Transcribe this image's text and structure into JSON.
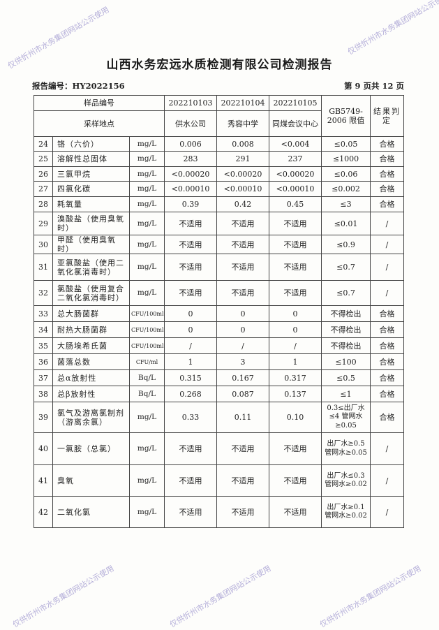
{
  "watermark": "仅供忻州市水务集团网站公示使用",
  "title": "山西水务宏远水质检测有限公司检测报告",
  "report_no": "报告编号：HY2022156",
  "page_info": "第 9 页共 12 页",
  "header": {
    "sample_no_label": "样品编号",
    "site_label": "采样地点",
    "samples": [
      "202210103",
      "202210104",
      "202210105"
    ],
    "sites": [
      "供水公司",
      "秀容中学",
      "同煤会议中心"
    ],
    "limit_label": "GB5749-2006 限值",
    "result_label": "结果判定"
  },
  "rows": [
    {
      "no": "24",
      "item": "铬（六价）",
      "unit": "mg/L",
      "v": [
        "0.006",
        "0.008",
        "<0.004"
      ],
      "limit": "≤0.05",
      "result": "合格"
    },
    {
      "no": "25",
      "item": "溶解性总固体",
      "unit": "mg/L",
      "v": [
        "283",
        "291",
        "237"
      ],
      "limit": "≤1000",
      "result": "合格"
    },
    {
      "no": "26",
      "item": "三氯甲烷",
      "unit": "mg/L",
      "v": [
        "<0.00020",
        "<0.00020",
        "<0.00020"
      ],
      "limit": "≤0.06",
      "result": "合格"
    },
    {
      "no": "27",
      "item": "四氯化碳",
      "unit": "mg/L",
      "v": [
        "<0.00010",
        "<0.00010",
        "<0.00010"
      ],
      "limit": "≤0.002",
      "result": "合格"
    },
    {
      "no": "28",
      "item": "耗氧量",
      "unit": "mg/L",
      "v": [
        "0.39",
        "0.42",
        "0.45"
      ],
      "limit": "≤3",
      "result": "合格"
    },
    {
      "no": "29",
      "item": "溴酸盐（使用臭氧时）",
      "unit": "mg/L",
      "v": [
        "不适用",
        "不适用",
        "不适用"
      ],
      "limit": "≤0.01",
      "result": "/"
    },
    {
      "no": "30",
      "item": "甲醛（使用臭氧时）",
      "unit": "mg/L",
      "v": [
        "不适用",
        "不适用",
        "不适用"
      ],
      "limit": "≤0.9",
      "result": "/"
    },
    {
      "no": "31",
      "item": "亚氯酸盐（使用二氧化氯消毒时）",
      "unit": "mg/L",
      "v": [
        "不适用",
        "不适用",
        "不适用"
      ],
      "limit": "≤0.7",
      "result": "/"
    },
    {
      "no": "32",
      "item": "氯酸盐（使用复合二氧化氯消毒时）",
      "unit": "mg/L",
      "v": [
        "不适用",
        "不适用",
        "不适用"
      ],
      "limit": "≤0.7",
      "result": "/"
    },
    {
      "no": "33",
      "item": "总大肠菌群",
      "unit": "CFU/100ml",
      "v": [
        "0",
        "0",
        "0"
      ],
      "limit": "不得检出",
      "result": "合格"
    },
    {
      "no": "34",
      "item": "耐热大肠菌群",
      "unit": "CFU/100ml",
      "v": [
        "0",
        "0",
        "0"
      ],
      "limit": "不得检出",
      "result": "合格"
    },
    {
      "no": "35",
      "item": "大肠埃希氏菌",
      "unit": "CFU/100ml",
      "v": [
        "/",
        "/",
        "/"
      ],
      "limit": "不得检出",
      "result": "合格"
    },
    {
      "no": "36",
      "item": "菌落总数",
      "unit": "CFU/ml",
      "v": [
        "1",
        "3",
        "1"
      ],
      "limit": "≤100",
      "result": "合格"
    },
    {
      "no": "37",
      "item": "总α放射性",
      "unit": "Bq/L",
      "v": [
        "0.315",
        "0.167",
        "0.317"
      ],
      "limit": "≤0.5",
      "result": "合格"
    },
    {
      "no": "38",
      "item": "总β放射性",
      "unit": "Bq/L",
      "v": [
        "0.268",
        "0.087",
        "0.137"
      ],
      "limit": "≤1",
      "result": "合格"
    },
    {
      "no": "39",
      "item": "氯气及游离氯制剂（游离余氯）",
      "unit": "mg/L",
      "v": [
        "0.33",
        "0.11",
        "0.10"
      ],
      "limit": "0.3≤出厂水≤4 管网水≥0.05",
      "result": "合格"
    },
    {
      "no": "40",
      "item": "一氯胺（总氯）",
      "unit": "mg/L",
      "v": [
        "不适用",
        "不适用",
        "不适用"
      ],
      "limit": "出厂水≥0.5 管网水≥0.05",
      "result": "/"
    },
    {
      "no": "41",
      "item": "臭氧",
      "unit": "mg/L",
      "v": [
        "不适用",
        "不适用",
        "不适用"
      ],
      "limit": "出厂水≤0.3 管网水≥0.02",
      "result": "/"
    },
    {
      "no": "42",
      "item": "二氧化氯",
      "unit": "mg/L",
      "v": [
        "不适用",
        "不适用",
        "不适用"
      ],
      "limit": "出厂水≥0.1 管网水≥0.02",
      "result": "/"
    }
  ]
}
